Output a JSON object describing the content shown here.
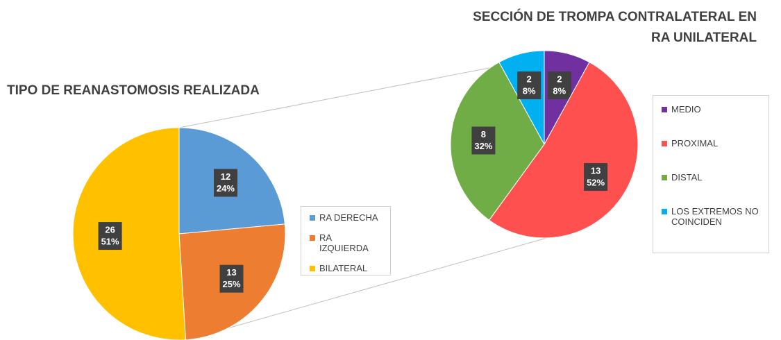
{
  "chart_data": [
    {
      "type": "pie",
      "title": "TIPO DE REANASTOMOSIS REALIZADA",
      "categories": [
        "RA DERECHA",
        "RA IZQUIERDA",
        "BILATERAL"
      ],
      "values": [
        12,
        13,
        26
      ],
      "percent_labels": [
        "24%",
        "25%",
        "51%"
      ],
      "colors": [
        "#5b9bd5",
        "#ed7d31",
        "#ffc000"
      ]
    },
    {
      "type": "pie",
      "title": "SECCIÓN DE TROMPA CONTRALATERAL  EN RA UNILATERAL",
      "categories": [
        "MEDIO",
        "PROXIMAL",
        "DISTAL",
        "LOS EXTREMOS NO COINCIDEN"
      ],
      "values": [
        2,
        13,
        8,
        2
      ],
      "percent_labels": [
        "8%",
        "52%",
        "32%",
        "8%"
      ],
      "colors": [
        "#7030a0",
        "#ff5050",
        "#70ad47",
        "#00b0f0"
      ]
    }
  ]
}
